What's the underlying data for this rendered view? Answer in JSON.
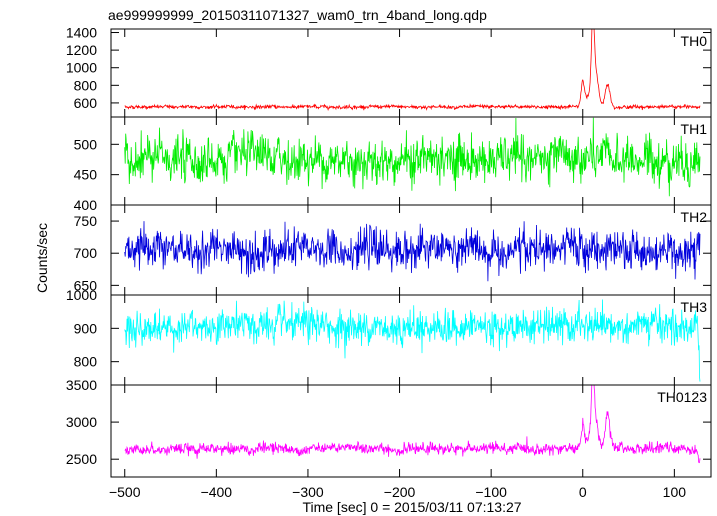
{
  "chart_data": {
    "type": "line",
    "title": "ae999999999_20150311071327_wam0_trn_4band_long.qdp",
    "xlabel": "Time [sec] 0 = 2015/03/11 07:13:27",
    "ylabel": "Counts/sec",
    "xlim": [
      -515,
      140
    ],
    "xticks": [
      -500,
      -400,
      -300,
      -200,
      -100,
      0,
      100
    ],
    "xtick_labels": [
      "−500",
      "−400",
      "−300",
      "−200",
      "−100",
      "0",
      "100"
    ],
    "shared_x": {
      "start": -500,
      "end": 128,
      "step": 0.5
    },
    "grid": false,
    "panels": [
      {
        "name": "TH0",
        "color": "#ff0000",
        "ylim": [
          440,
          1440
        ],
        "yticks": [
          600,
          800,
          1000,
          1200,
          1400
        ],
        "ytick_labels": [
          "600",
          "800",
          "1000",
          "1200",
          "1400"
        ],
        "baseline": 555,
        "noise": 12,
        "features": [
          {
            "center": 0,
            "amp": 280,
            "width": 1.8
          },
          {
            "center": 11,
            "amp": 800,
            "width": 1.5
          },
          {
            "center": 14,
            "amp": 380,
            "width": 3.0
          },
          {
            "center": 27,
            "amp": 270,
            "width": 2.5
          },
          {
            "center": 7,
            "amp": 120,
            "width": 4.0
          }
        ]
      },
      {
        "name": "TH1",
        "color": "#00ee00",
        "ylim": [
          400,
          545
        ],
        "yticks": [
          400,
          450,
          500
        ],
        "ytick_labels": [
          "400",
          "450",
          "500"
        ],
        "baseline": 475,
        "noise": 22,
        "features": []
      },
      {
        "name": "TH2",
        "color": "#0000dd",
        "ylim": [
          635,
          775
        ],
        "yticks": [
          650,
          700,
          750
        ],
        "ytick_labels": [
          "650",
          "700",
          "750"
        ],
        "baseline": 705,
        "noise": 18,
        "features": []
      },
      {
        "name": "TH3",
        "color": "#00ffff",
        "ylim": [
          730,
          1000
        ],
        "yticks": [
          800,
          900,
          1000
        ],
        "ytick_labels": [
          "800",
          "900",
          "1000"
        ],
        "baseline": 905,
        "noise": 30,
        "features": [
          {
            "center": 128,
            "amp": -160,
            "width": 0.8
          }
        ]
      },
      {
        "name": "TH0123",
        "color": "#ff00ff",
        "ylim": [
          2260,
          3500
        ],
        "yticks": [
          2500,
          3000,
          3500
        ],
        "ytick_labels": [
          "2500",
          "3000",
          "3500"
        ],
        "baseline": 2640,
        "noise": 45,
        "features": [
          {
            "center": 0,
            "amp": 300,
            "width": 1.8
          },
          {
            "center": 11,
            "amp": 780,
            "width": 1.5
          },
          {
            "center": 14,
            "amp": 360,
            "width": 3.0
          },
          {
            "center": 27,
            "amp": 450,
            "width": 2.5
          },
          {
            "center": 7,
            "amp": 120,
            "width": 4.0
          },
          {
            "center": 127,
            "amp": -260,
            "width": 0.8
          }
        ]
      }
    ]
  }
}
